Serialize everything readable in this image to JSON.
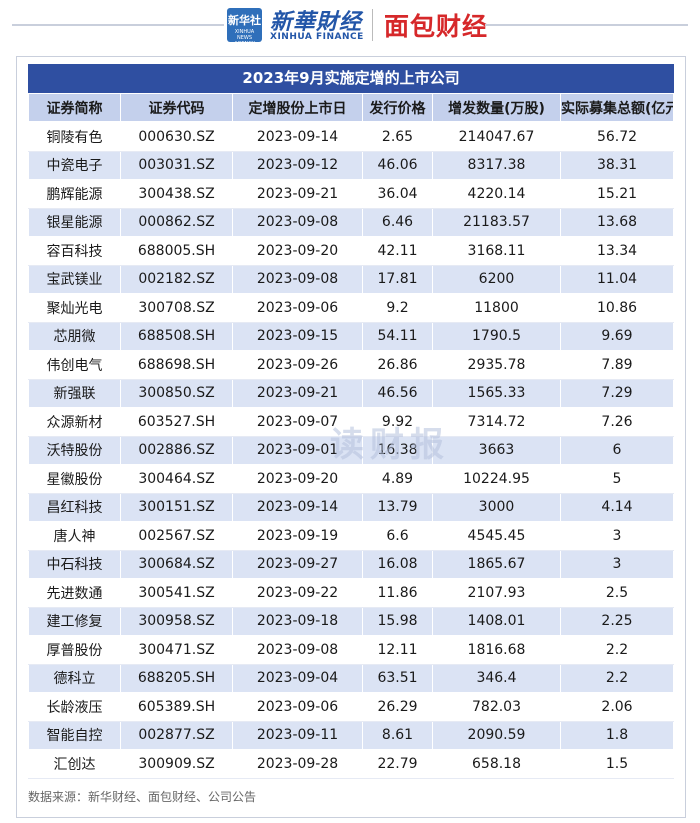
{
  "header": {
    "xinhua_badge_cn": "新华社",
    "xinhua_badge_en": "XINHUA NEWS AGENCY",
    "xinhua_finance_cn": "新華財经",
    "xinhua_finance_en": "XINHUA FINANCE",
    "mianbao_logo": "面包财经"
  },
  "table": {
    "title": "2023年9月实施定增的上市公司",
    "columns": [
      "证券简称",
      "证券代码",
      "定增股份上市日",
      "发行价格",
      "增发数量(万股)",
      "实际募集总额(亿元)"
    ],
    "rows": [
      [
        "铜陵有色",
        "000630.SZ",
        "2023-09-14",
        "2.65",
        "214047.67",
        "56.72"
      ],
      [
        "中瓷电子",
        "003031.SZ",
        "2023-09-12",
        "46.06",
        "8317.38",
        "38.31"
      ],
      [
        "鹏辉能源",
        "300438.SZ",
        "2023-09-21",
        "36.04",
        "4220.14",
        "15.21"
      ],
      [
        "银星能源",
        "000862.SZ",
        "2023-09-08",
        "6.46",
        "21183.57",
        "13.68"
      ],
      [
        "容百科技",
        "688005.SH",
        "2023-09-20",
        "42.11",
        "3168.11",
        "13.34"
      ],
      [
        "宝武镁业",
        "002182.SZ",
        "2023-09-08",
        "17.81",
        "6200",
        "11.04"
      ],
      [
        "聚灿光电",
        "300708.SZ",
        "2023-09-06",
        "9.2",
        "11800",
        "10.86"
      ],
      [
        "芯朋微",
        "688508.SH",
        "2023-09-15",
        "54.11",
        "1790.5",
        "9.69"
      ],
      [
        "伟创电气",
        "688698.SH",
        "2023-09-26",
        "26.86",
        "2935.78",
        "7.89"
      ],
      [
        "新强联",
        "300850.SZ",
        "2023-09-21",
        "46.56",
        "1565.33",
        "7.29"
      ],
      [
        "众源新材",
        "603527.SH",
        "2023-09-07",
        "9.92",
        "7314.72",
        "7.26"
      ],
      [
        "沃特股份",
        "002886.SZ",
        "2023-09-01",
        "16.38",
        "3663",
        "6"
      ],
      [
        "星徽股份",
        "300464.SZ",
        "2023-09-20",
        "4.89",
        "10224.95",
        "5"
      ],
      [
        "昌红科技",
        "300151.SZ",
        "2023-09-14",
        "13.79",
        "3000",
        "4.14"
      ],
      [
        "唐人神",
        "002567.SZ",
        "2023-09-19",
        "6.6",
        "4545.45",
        "3"
      ],
      [
        "中石科技",
        "300684.SZ",
        "2023-09-27",
        "16.08",
        "1865.67",
        "3"
      ],
      [
        "先进数通",
        "300541.SZ",
        "2023-09-22",
        "11.86",
        "2107.93",
        "2.5"
      ],
      [
        "建工修复",
        "300958.SZ",
        "2023-09-18",
        "15.98",
        "1408.01",
        "2.25"
      ],
      [
        "厚普股份",
        "300471.SZ",
        "2023-09-08",
        "12.11",
        "1816.68",
        "2.2"
      ],
      [
        "德科立",
        "688205.SH",
        "2023-09-04",
        "63.51",
        "346.4",
        "2.2"
      ],
      [
        "长龄液压",
        "605389.SH",
        "2023-09-06",
        "26.29",
        "782.03",
        "2.06"
      ],
      [
        "智能自控",
        "002877.SZ",
        "2023-09-11",
        "8.61",
        "2090.59",
        "1.8"
      ],
      [
        "汇创达",
        "300909.SZ",
        "2023-09-28",
        "22.79",
        "658.18",
        "1.5"
      ]
    ]
  },
  "watermark": "读财报",
  "source": "数据来源：新华财经、面包财经、公司公告"
}
